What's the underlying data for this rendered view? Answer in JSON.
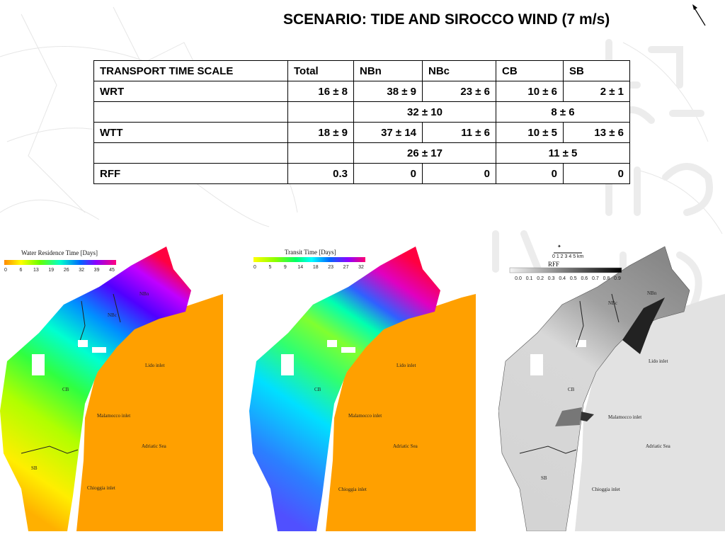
{
  "title": "SCENARIO: TIDE AND SIROCCO WIND (7 m/s)",
  "table": {
    "header": [
      "TRANSPORT TIME SCALE",
      "Total",
      "NBn",
      "NBc",
      "CB",
      "SB"
    ],
    "wrt": {
      "label": "WRT",
      "values": [
        "16 ± 8",
        "38 ± 9",
        "23 ± 6",
        "10 ± 6",
        "2 ± 1"
      ]
    },
    "wrt_merged": {
      "north": "32  ± 10",
      "south": "8 ± 6"
    },
    "wtt": {
      "label": "WTT",
      "values": [
        "18 ± 9",
        "37 ± 14",
        "11 ± 6",
        "10 ± 5",
        "13 ± 6"
      ]
    },
    "wtt_merged": {
      "north": "26 ± 17",
      "south": "11 ± 5"
    },
    "rff": {
      "label": "RFF",
      "values": [
        "0.3",
        "0",
        "0",
        "0",
        "0"
      ]
    }
  },
  "maps": [
    {
      "colorbar_title": "Water Residence Time [Days]",
      "ticks": [
        "0",
        "6",
        "13",
        "19",
        "26",
        "32",
        "39",
        "45"
      ],
      "labels": {
        "nbn": "NBn",
        "nbc": "NBc",
        "cb": "CB",
        "sb": "SB",
        "lido": "Lido inlet",
        "malamocco": "Malamocco inlet",
        "adriatic": "Adriatic Sea",
        "chioggia": "Chioggia inlet"
      }
    },
    {
      "colorbar_title": "Transit Time [Days]",
      "ticks": [
        "0",
        "5",
        "9",
        "14",
        "18",
        "23",
        "27",
        "32"
      ],
      "labels": {
        "lido": "Lido inlet",
        "malamocco": "Malamocco inlet",
        "adriatic": "Adriatic Sea",
        "chioggia": "Chioggia inlet",
        "cb": "CB"
      }
    },
    {
      "colorbar_title": "RFF",
      "scale_label": "0 1 2 3 4 5 km",
      "ticks": [
        "0.0",
        "0.1",
        "0.2",
        "0.3",
        "0.4",
        "0.5",
        "0.6",
        "0.7",
        "0.8",
        "0.9"
      ],
      "labels": {
        "nbc": "NBc",
        "nbn": "NBn",
        "cb": "CB",
        "sb": "SB",
        "lido": "Lido inlet",
        "malamocco": "Malamocco inlet",
        "adriatic": "Adriatic Sea",
        "chioggia": "Chioggia inlet"
      }
    }
  ],
  "colors": {
    "sea": "#ff9d00",
    "rff_sea": "#e0e0e0",
    "rff_lagoon": "#c9c9c9"
  }
}
